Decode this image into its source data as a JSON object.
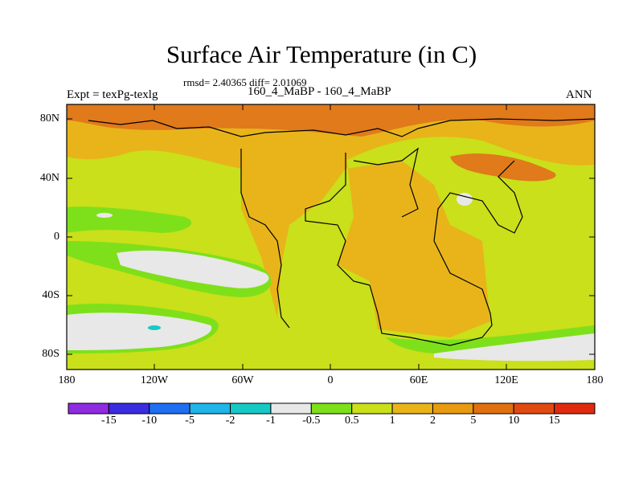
{
  "title": "Surface Air Temperature (in C)",
  "stats_line": "rmsd= 2.40365 diff= 2.01069",
  "experiment_label": "Expt = texPg-texlg",
  "comparison_label": "160_4_MaBP - 160_4_MaBP",
  "season_label": "ANN",
  "lat_ticks": [
    "80N",
    "40N",
    "0",
    "40S",
    "80S"
  ],
  "lon_ticks": [
    "180",
    "120W",
    "60W",
    "0",
    "60E",
    "120E",
    "180"
  ],
  "colorbar": {
    "colors": [
      "#8f2be0",
      "#3a2de0",
      "#1f6ff0",
      "#1fb5e8",
      "#17c9c4",
      "#e8e8e8",
      "#7ee01a",
      "#c9e01a",
      "#e8b41a",
      "#e89a10",
      "#e07010",
      "#e04a10",
      "#e02a10"
    ],
    "labels": [
      "-15",
      "-10",
      "-5",
      "-2",
      "-1",
      "-0.5",
      "0.5",
      "1",
      "2",
      "5",
      "10",
      "15"
    ]
  },
  "colors": {
    "warm_dark": "#e07a1a",
    "warm": "#e8b41a",
    "mild": "#c9e01a",
    "neutral": "#e8e8e8",
    "cool": "#7ee01a",
    "cold_spot": "#17c9c4"
  }
}
